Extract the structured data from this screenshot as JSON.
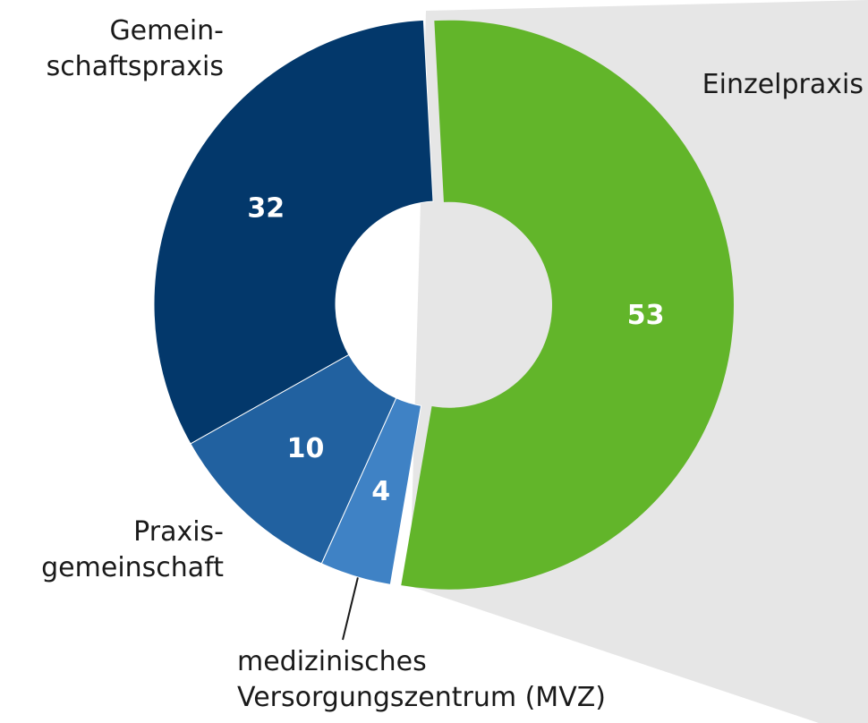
{
  "chart_data": {
    "type": "donut",
    "categories": [
      "Einzelpraxis",
      "medizinisches\nVersorgungszentrum (MVZ)",
      "Praxis-\ngemeinschaft",
      "Gemein-\nschaftspraxis"
    ],
    "values": [
      53,
      4,
      10,
      32
    ],
    "colors": [
      "#62b52a",
      "#3f82c5",
      "#2161a0",
      "#03386b"
    ]
  }
}
